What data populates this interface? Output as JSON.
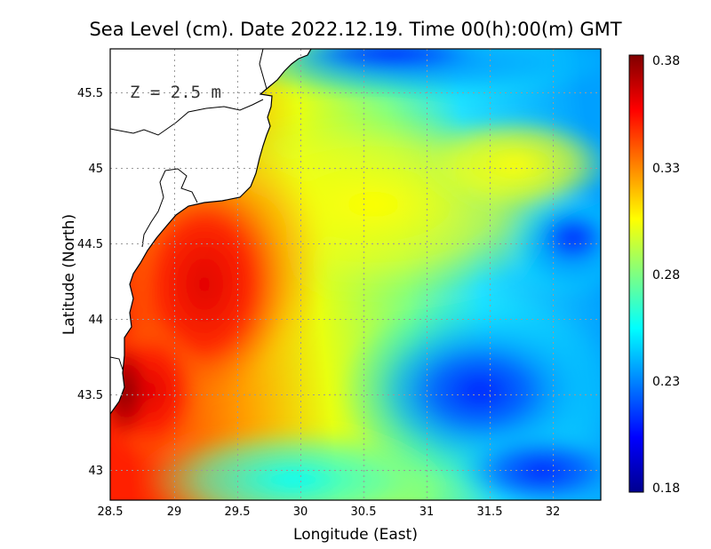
{
  "chart_data": {
    "type": "heatmap",
    "title": "Sea Level (cm). Date 2022.12.19. Time 00(h):00(m) GMT",
    "xlabel": "Longitude (East)",
    "ylabel": "Latitude (North)",
    "xlim": [
      28.5,
      32.4
    ],
    "ylim": [
      42.8,
      45.8
    ],
    "x_ticks": [
      "28.5",
      "29",
      "29.5",
      "30",
      "30.5",
      "31",
      "31.5",
      "32"
    ],
    "y_ticks": [
      "43",
      "43.5",
      "44",
      "44.5",
      "45",
      "45.5"
    ],
    "grid": true,
    "annotation": "Z = 2.5 m",
    "colorbar": {
      "min": 0.18,
      "max": 0.38,
      "ticks": [
        "0.38",
        "0.33",
        "0.28",
        "0.23",
        "0.18"
      ],
      "colormap": [
        "#00008f",
        "#0000ff",
        "#0080ff",
        "#00ffff",
        "#80ff80",
        "#ffff00",
        "#ff8000",
        "#ff0000",
        "#800000"
      ]
    },
    "field_samples": [
      {
        "lon": 28.6,
        "lat": 43.6,
        "value": 0.38
      },
      {
        "lon": 28.8,
        "lat": 44.3,
        "value": 0.36
      },
      {
        "lon": 29.5,
        "lat": 44.5,
        "value": 0.35
      },
      {
        "lon": 29.3,
        "lat": 43.8,
        "value": 0.33
      },
      {
        "lon": 30.0,
        "lat": 44.7,
        "value": 0.32
      },
      {
        "lon": 30.5,
        "lat": 45.3,
        "value": 0.29
      },
      {
        "lon": 31.5,
        "lat": 45.0,
        "value": 0.3
      },
      {
        "lon": 32.1,
        "lat": 44.5,
        "value": 0.23
      },
      {
        "lon": 31.5,
        "lat": 43.5,
        "value": 0.22
      },
      {
        "lon": 31.8,
        "lat": 42.9,
        "value": 0.19
      },
      {
        "lon": 30.5,
        "lat": 45.7,
        "value": 0.22
      },
      {
        "lon": 30.0,
        "lat": 43.0,
        "value": 0.25
      }
    ]
  }
}
